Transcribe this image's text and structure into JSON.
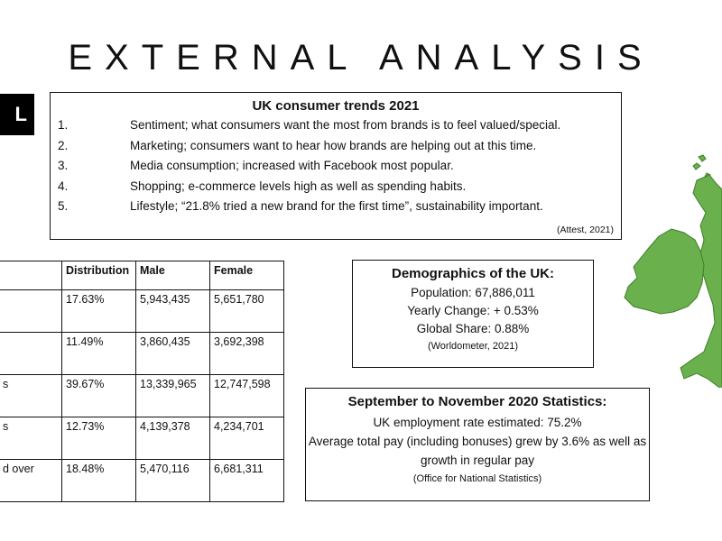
{
  "page": {
    "title": "EXTERNAL ANALYSIS",
    "side_tab_text": "L"
  },
  "trends": {
    "heading": "UK consumer trends 2021",
    "items": [
      {
        "num": "1.",
        "text": "Sentiment; what consumers want the most from brands is to feel valued/special."
      },
      {
        "num": "2.",
        "text": "Marketing; consumers want to hear how brands are helping out at this time."
      },
      {
        "num": "3.",
        "text": "Media consumption; increased with Facebook most popular."
      },
      {
        "num": "4.",
        "text": "Shopping; e-commerce levels high as well as spending habits."
      },
      {
        "num": "5.",
        "text": "Lifestyle; “21.8% tried a new brand for the first time”, sustainability important."
      }
    ],
    "source": "(Attest, 2021)"
  },
  "table": {
    "headers": [
      "",
      "Distribution",
      "Male",
      "Female"
    ],
    "rows": [
      [
        "",
        "17.63%",
        "5,943,435",
        "5,651,780"
      ],
      [
        "",
        "11.49%",
        "3,860,435",
        "3,692,398"
      ],
      [
        "s",
        "39.67%",
        "13,339,965",
        "12,747,598"
      ],
      [
        "s",
        "12.73%",
        "4,139,378",
        "4,234,701"
      ],
      [
        "d over",
        "18.48%",
        "5,470,116",
        "6,681,311"
      ]
    ]
  },
  "demographics": {
    "heading": "Demographics of the UK:",
    "population": "Population: 67,886,011",
    "yearly_change": "Yearly Change: + 0.53%",
    "global_share": "Global Share: 0.88%",
    "source": "(Worldometer, 2021)"
  },
  "stats": {
    "heading": "September to November 2020 Statistics:",
    "line1": "UK employment rate estimated: 75.2%",
    "line2": "Average total pay (including bonuses) grew by 3.6% as well as",
    "line3": "growth in regular pay",
    "source": "(Office for National Statistics)"
  },
  "colors": {
    "map_fill": "#6ab04c",
    "map_stroke": "#3f7f2a"
  }
}
